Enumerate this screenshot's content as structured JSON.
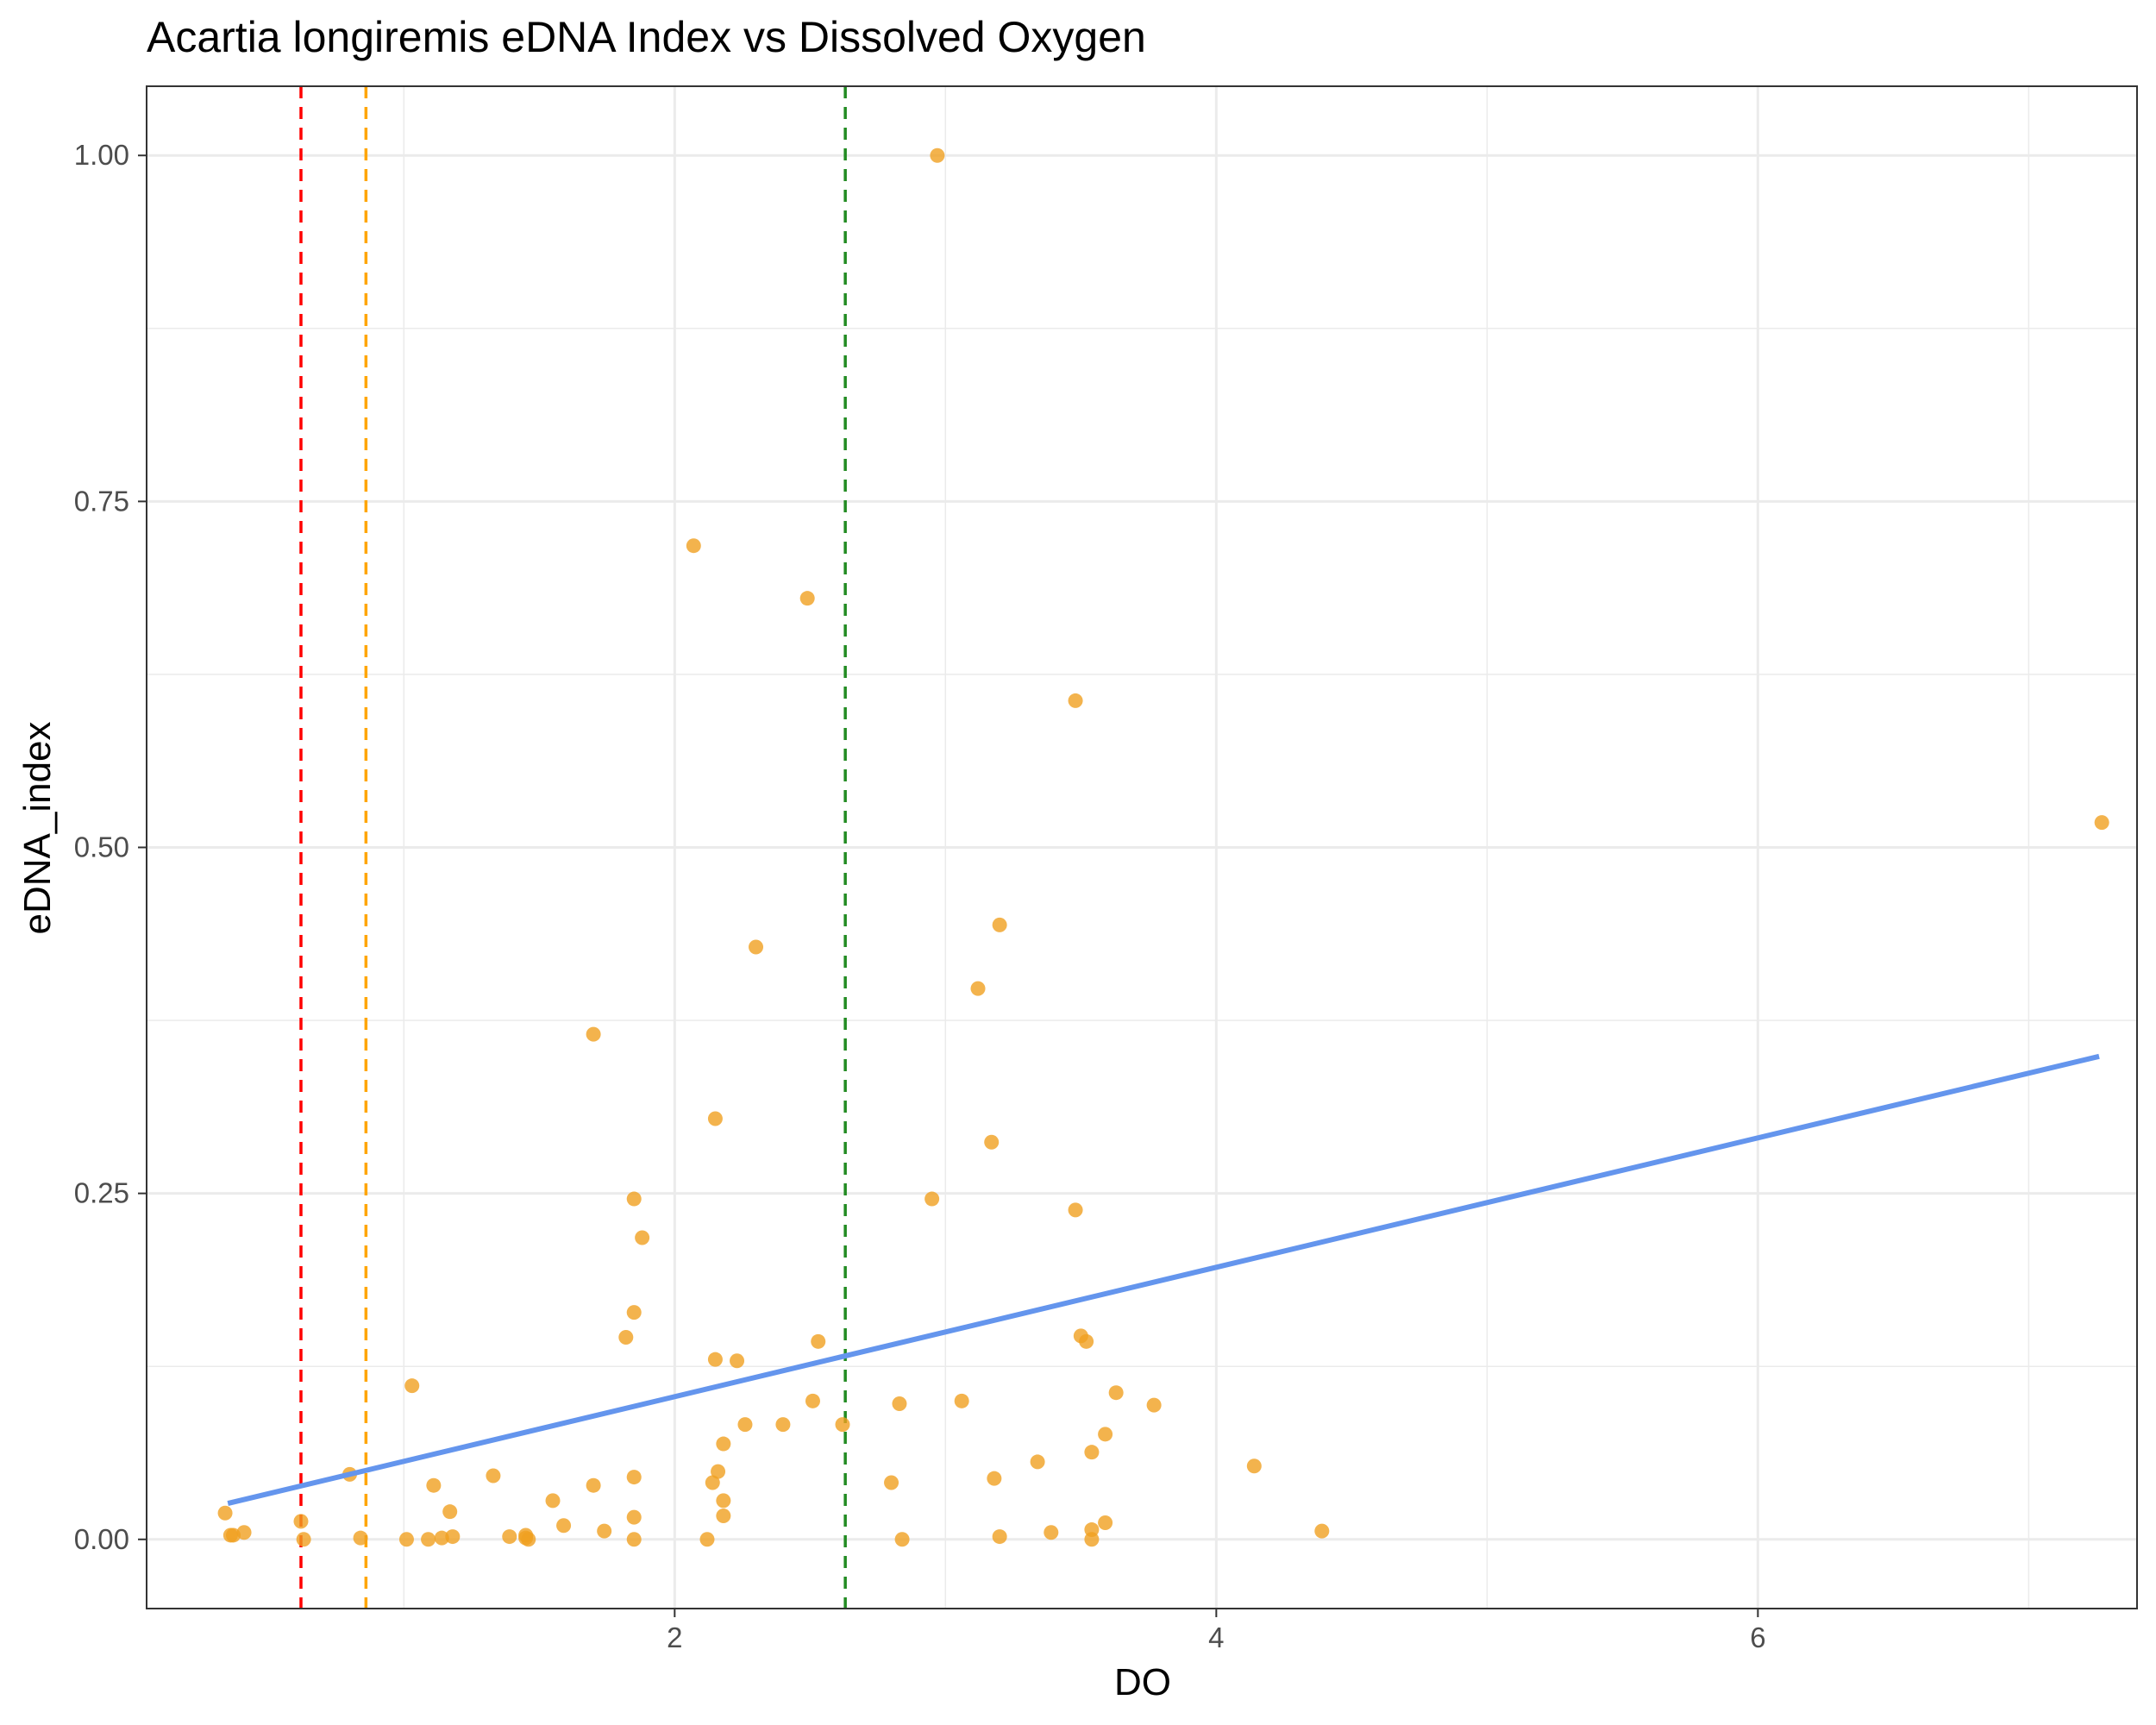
{
  "chart_data": {
    "type": "scatter",
    "title": "Acartia longiremis eDNA Index vs Dissolved Oxygen",
    "xlabel": "DO",
    "ylabel": "eDNA_index",
    "xlim": [
      0.05,
      7.4
    ],
    "ylim": [
      -0.05,
      1.05
    ],
    "x_ticks": [
      2,
      4,
      6
    ],
    "x_tick_labels": [
      "2",
      "4",
      "6"
    ],
    "y_ticks": [
      0,
      0.25,
      0.5,
      0.75,
      1
    ],
    "y_tick_labels": [
      "0.00",
      "0.25",
      "0.50",
      "0.75",
      "1.00"
    ],
    "grid": true,
    "colors": {
      "points": "#F0A020",
      "trend": "#6495ED",
      "vline_red": "#FF0000",
      "vline_orange": "#FFA500",
      "vline_green": "#228B22",
      "grid": "#EBEBEB",
      "panel_border": "#333333"
    },
    "vlines": [
      {
        "x": 0.62,
        "color": "red"
      },
      {
        "x": 0.86,
        "color": "orange"
      },
      {
        "x": 2.63,
        "color": "green"
      }
    ],
    "trend_line": {
      "x": [
        0.35,
        7.26
      ],
      "y": [
        0.026,
        0.349
      ]
    },
    "points": {
      "x": [
        2.97,
        2.07,
        2.49,
        3.48,
        7.27,
        3.2,
        2.3,
        3.12,
        1.7,
        2.15,
        3.17,
        1.85,
        2.95,
        3.48,
        1.88,
        1.85,
        1.82,
        2.53,
        3.5,
        3.52,
        2.15,
        2.23,
        1.03,
        2.51,
        3.63,
        3.06,
        2.83,
        3.77,
        2.62,
        2.4,
        2.26,
        3.59,
        3.54,
        2.18,
        3.34,
        4.14,
        2.16,
        0.8,
        1.33,
        1.85,
        3.18,
        2.14,
        2.8,
        1.7,
        1.11,
        1.55,
        2.18,
        1.17,
        0.34,
        2.18,
        1.85,
        0.62,
        1.59,
        3.59,
        4.39,
        1.74,
        3.54,
        3.39,
        0.41,
        0.37,
        0.36,
        1.18,
        1.45,
        1.39,
        1.14,
        3.2,
        0.84,
        1.09,
        1.45,
        1.46,
        1.01,
        0.63,
        1.85,
        2.84,
        3.54,
        2.12
      ],
      "y": [
        1.0,
        0.718,
        0.68,
        0.606,
        0.518,
        0.444,
        0.428,
        0.398,
        0.365,
        0.304,
        0.287,
        0.246,
        0.246,
        0.238,
        0.218,
        0.164,
        0.146,
        0.143,
        0.147,
        0.143,
        0.13,
        0.129,
        0.111,
        0.1,
        0.106,
        0.1,
        0.098,
        0.097,
        0.083,
        0.083,
        0.083,
        0.076,
        0.063,
        0.069,
        0.056,
        0.053,
        0.049,
        0.047,
        0.046,
        0.045,
        0.044,
        0.041,
        0.041,
        0.039,
        0.039,
        0.028,
        0.028,
        0.02,
        0.019,
        0.017,
        0.016,
        0.013,
        0.01,
        0.012,
        0.006,
        0.006,
        0.007,
        0.005,
        0.005,
        0.003,
        0.003,
        0.002,
        0.003,
        0.002,
        0.001,
        0.002,
        0.001,
        0.0,
        0.001,
        0.0,
        0.0,
        0.0,
        0.0,
        0.0,
        0.0,
        0.0
      ]
    }
  }
}
